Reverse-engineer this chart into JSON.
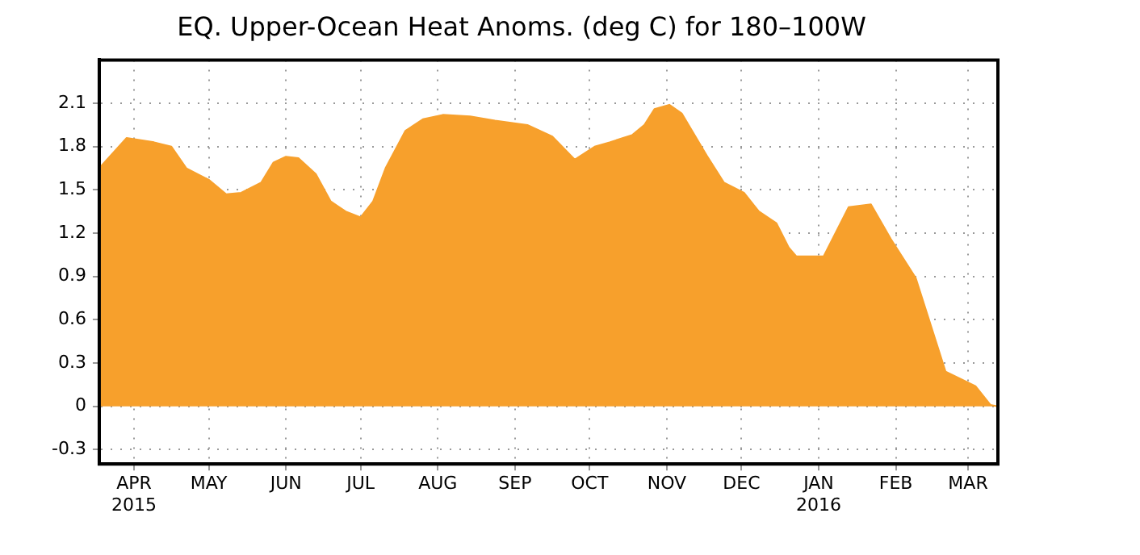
{
  "chart_data": {
    "type": "area",
    "title": "EQ. Upper-Ocean Heat Anoms. (deg C) for 180–100W",
    "x": [
      "2015-03-18",
      "2015-03-29",
      "2015-04-09",
      "2015-04-16",
      "2015-04-22",
      "2015-05-01",
      "2015-05-08",
      "2015-05-14",
      "2015-05-22",
      "2015-05-27",
      "2015-06-01",
      "2015-06-06",
      "2015-06-13",
      "2015-06-19",
      "2015-06-25",
      "2015-07-01",
      "2015-07-06",
      "2015-07-11",
      "2015-07-19",
      "2015-07-26",
      "2015-08-03",
      "2015-08-14",
      "2015-08-24",
      "2015-09-06",
      "2015-09-16",
      "2015-09-25",
      "2015-10-03",
      "2015-10-09",
      "2015-10-18",
      "2015-10-23",
      "2015-10-27",
      "2015-11-02",
      "2015-11-07",
      "2015-11-17",
      "2015-11-24",
      "2015-12-02",
      "2015-12-08",
      "2015-12-15",
      "2015-12-20",
      "2015-12-23",
      "2016-01-03",
      "2016-01-13",
      "2016-01-22",
      "2016-01-30",
      "2016-02-09",
      "2016-02-21",
      "2016-02-27",
      "2016-03-04",
      "2016-03-10",
      "2016-03-13"
    ],
    "values": [
      1.65,
      1.86,
      1.83,
      1.8,
      1.65,
      1.57,
      1.47,
      1.48,
      1.55,
      1.69,
      1.73,
      1.72,
      1.61,
      1.42,
      1.35,
      1.31,
      1.42,
      1.65,
      1.91,
      1.99,
      2.02,
      2.01,
      1.98,
      1.95,
      1.87,
      1.71,
      1.8,
      1.83,
      1.88,
      1.95,
      2.06,
      2.09,
      2.03,
      1.74,
      1.55,
      1.48,
      1.35,
      1.27,
      1.1,
      1.04,
      1.04,
      1.38,
      1.4,
      1.16,
      0.89,
      0.24,
      0.19,
      0.14,
      0.01,
      0
    ],
    "color": "#f7a02c",
    "xlim": [
      "2015-03-18",
      "2016-03-13"
    ],
    "xticks": [
      {
        "value": "2015-04-01",
        "label": "APR\n2015"
      },
      {
        "value": "2015-05-01",
        "label": "MAY"
      },
      {
        "value": "2015-06-01",
        "label": "JUN"
      },
      {
        "value": "2015-07-01",
        "label": "JUL"
      },
      {
        "value": "2015-08-01",
        "label": "AUG"
      },
      {
        "value": "2015-09-01",
        "label": "SEP"
      },
      {
        "value": "2015-10-01",
        "label": "OCT"
      },
      {
        "value": "2015-11-01",
        "label": "NOV"
      },
      {
        "value": "2015-12-01",
        "label": "DEC"
      },
      {
        "value": "2016-01-01",
        "label": "JAN\n2016"
      },
      {
        "value": "2016-02-01",
        "label": "FEB"
      },
      {
        "value": "2016-03-01",
        "label": "MAR"
      }
    ],
    "ylim": [
      -0.4,
      2.4
    ],
    "yticks": [
      -0.3,
      0,
      0.3,
      0.6,
      0.9,
      1.2,
      1.5,
      1.8,
      2.1
    ],
    "grid": true,
    "line_style": "solid"
  }
}
